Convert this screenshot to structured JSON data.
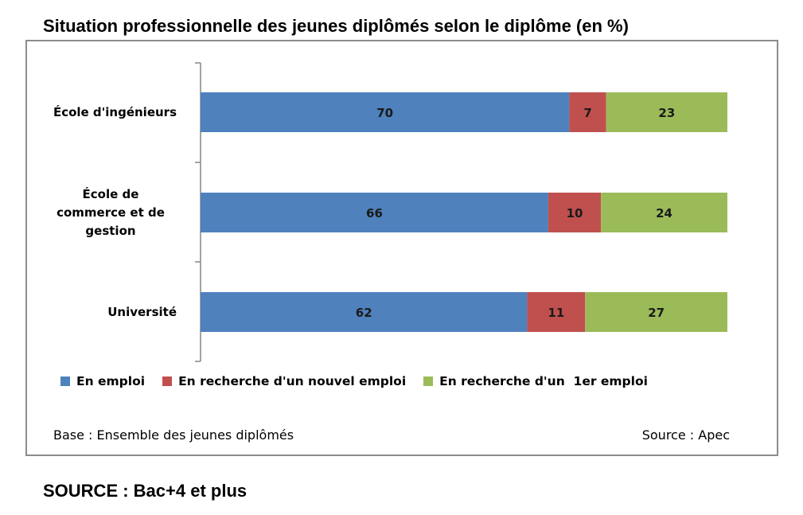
{
  "title": "Situation professionnelle des jeunes diplômés selon le diplôme (en %)",
  "footer": "SOURCE : Bac+4 et plus",
  "notes": {
    "base": "Base : Ensemble des jeunes diplômés",
    "source": "Source : Apec"
  },
  "chart_data": {
    "type": "bar",
    "orientation": "horizontal",
    "stacked": true,
    "categories": [
      [
        "École d'ingénieurs"
      ],
      [
        "École de",
        "commerce et de",
        "gestion"
      ],
      [
        "Université"
      ]
    ],
    "series": [
      {
        "name": "En emploi",
        "color": "#4f81bd",
        "values": [
          70,
          66,
          62
        ]
      },
      {
        "name": "En recherche d'un nouvel emploi",
        "color": "#c0504d",
        "values": [
          7,
          10,
          11
        ]
      },
      {
        "name": "En recherche d'un  1er emploi",
        "color": "#9bbb59",
        "values": [
          23,
          24,
          27
        ]
      }
    ],
    "xlim": [
      0,
      100
    ],
    "grid": false,
    "data_labels": true,
    "legend_position": "bottom"
  }
}
